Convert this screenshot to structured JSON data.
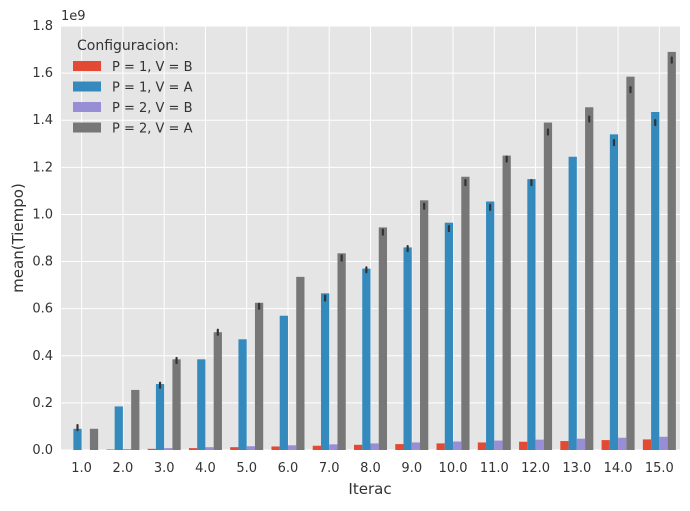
{
  "chart_data": {
    "type": "bar",
    "xlabel": "Iterac",
    "ylabel": "mean(Tiempo)",
    "y_multiplier_label": "1e9",
    "ylim": [
      0.0,
      1.8
    ],
    "y_ticks": [
      "0.0",
      "0.2",
      "0.4",
      "0.6",
      "0.8",
      "1.0",
      "1.2",
      "1.4",
      "1.6",
      "1.8"
    ],
    "categories": [
      "1.0",
      "2.0",
      "3.0",
      "4.0",
      "5.0",
      "6.0",
      "7.0",
      "8.0",
      "9.0",
      "10.0",
      "11.0",
      "12.0",
      "13.0",
      "14.0",
      "15.0"
    ],
    "legend": {
      "title": "Configuracion:",
      "placement": "top-left"
    },
    "grid": true,
    "series": [
      {
        "name": "P = 1, V = B",
        "color": "#e24a33",
        "values": [
          0.0,
          0.002,
          0.005,
          0.008,
          0.012,
          0.015,
          0.018,
          0.022,
          0.025,
          0.028,
          0.032,
          0.035,
          0.038,
          0.042,
          0.045
        ]
      },
      {
        "name": "P = 1, V = A",
        "color": "#348abd",
        "values": [
          0.09,
          0.185,
          0.28,
          0.385,
          0.47,
          0.57,
          0.665,
          0.77,
          0.86,
          0.965,
          1.055,
          1.15,
          1.245,
          1.34,
          1.435
        ]
      },
      {
        "name": "P = 2, V = B",
        "color": "#988ed5",
        "values": [
          0.0,
          0.004,
          0.008,
          0.012,
          0.016,
          0.02,
          0.024,
          0.028,
          0.032,
          0.036,
          0.04,
          0.044,
          0.048,
          0.052,
          0.056
        ]
      },
      {
        "name": "P = 2, V = A",
        "color": "#777777",
        "values": [
          0.09,
          0.255,
          0.385,
          0.5,
          0.625,
          0.735,
          0.835,
          0.945,
          1.06,
          1.16,
          1.25,
          1.39,
          1.455,
          1.585,
          1.69
        ]
      }
    ],
    "error_markers": [
      {
        "series": "P = 1, V = A",
        "values": [
          0.095,
          null,
          0.275,
          null,
          null,
          null,
          0.645,
          0.765,
          0.855,
          0.94,
          1.03,
          1.135,
          null,
          1.305,
          1.39
        ]
      },
      {
        "series": "P = 2, V = A",
        "values": [
          null,
          null,
          0.38,
          0.5,
          0.61,
          null,
          0.815,
          0.925,
          1.035,
          1.135,
          1.235,
          1.35,
          1.405,
          1.53,
          1.655
        ]
      }
    ]
  }
}
